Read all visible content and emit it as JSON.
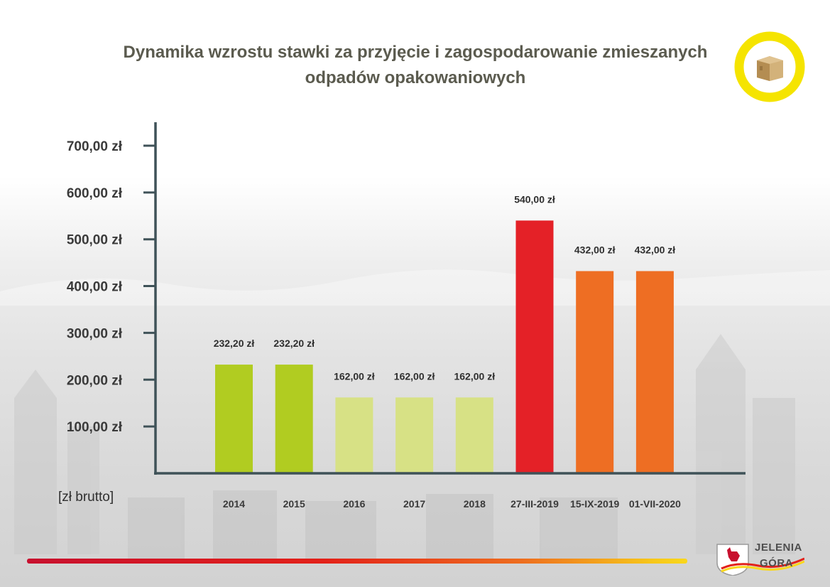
{
  "title_lines": [
    "Dynamika wzrostu stawki za przyjęcie i zagospodarowanie zmieszanych",
    "odpadów opakowaniowych"
  ],
  "unit_label": "[zł brutto]",
  "logo": {
    "line1": "JELENIA",
    "line2": "GÓRA"
  },
  "colors": {
    "title": "#5b5b4f",
    "axis": "#3f5258",
    "badge_ring": "#f5e400",
    "bottom_stripe": [
      "#c8102e",
      "#e32119",
      "#ee6e1f",
      "#f9d71c"
    ]
  },
  "chart_data": {
    "type": "bar",
    "categories": [
      "2014",
      "2015",
      "2016",
      "2017",
      "2018",
      "27-III-2019",
      "15-IX-2019",
      "01-VII-2020"
    ],
    "values": [
      232.2,
      232.2,
      162.0,
      162.0,
      162.0,
      540.0,
      432.0,
      432.0
    ],
    "data_labels": [
      "232,20 zł",
      "232,20 zł",
      "162,00 zł",
      "162,00 zł",
      "162,00 zł",
      "540,00 zł",
      "432,00 zł",
      "432,00 zł"
    ],
    "bar_colors": [
      "#b1cc21",
      "#b1cc21",
      "#d7e185",
      "#d7e185",
      "#d7e185",
      "#e42127",
      "#ee6e23",
      "#ee6e23"
    ],
    "yticks": [
      100,
      200,
      300,
      400,
      500,
      600,
      700
    ],
    "ytick_labels": [
      "100,00 zł",
      "200,00 zł",
      "300,00 zł",
      "400,00 zł",
      "500,00 zł",
      "600,00 zł",
      "700,00 zł"
    ],
    "ylim": [
      0,
      750
    ],
    "grid": false,
    "legend": "none",
    "title": "Dynamika wzrostu stawki za przyjęcie i zagospodarowanie zmieszanych odpadów opakowaniowych",
    "xlabel": "",
    "ylabel": "[zł brutto]"
  }
}
